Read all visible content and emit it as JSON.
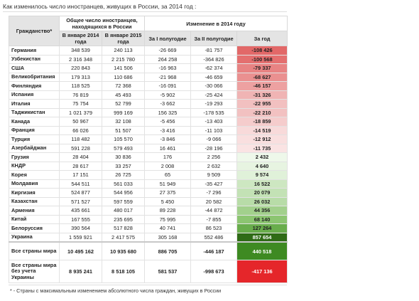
{
  "title": "Как изменилось число иностранцев, живущих в России, за 2014 год :",
  "table": {
    "header": {
      "country": "Гражданство*",
      "total_group": "Общее число иностранцев, находящихся в России",
      "change_group": "Изменение в 2014 году",
      "columns": [
        "В январе 2014 года",
        "В январе 2015 года",
        "За I полугодие",
        "За II полугодие",
        "За год"
      ]
    },
    "rows": [
      [
        "Германия",
        "348 539",
        "240 113",
        "-26 669",
        "-81 757",
        "-108 426"
      ],
      [
        "Узбекистан",
        "2 316 348",
        "2 215 780",
        "264 258",
        "-364 826",
        "-100 568"
      ],
      [
        "США",
        "220 843",
        "141 506",
        "-16 963",
        "-62 374",
        "-79 337"
      ],
      [
        "Великобритания",
        "179 313",
        "110 686",
        "-21 968",
        "-46 659",
        "-68 627"
      ],
      [
        "Финляндия",
        "118 525",
        "72 368",
        "-16 091",
        "-30 066",
        "-46 157"
      ],
      [
        "Испания",
        "76 819",
        "45 493",
        "-5 902",
        "-25 424",
        "-31 326"
      ],
      [
        "Италия",
        "75 754",
        "52 799",
        "-3 662",
        "-19 293",
        "-22 955"
      ],
      [
        "Таджикистан",
        "1 021 379",
        "999 169",
        "156 325",
        "-178 535",
        "-22 210"
      ],
      [
        "Канада",
        "50 967",
        "32 108",
        "-5 456",
        "-13 403",
        "-18 859"
      ],
      [
        "Франция",
        "66 026",
        "51 507",
        "-3 416",
        "-11 103",
        "-14 519"
      ],
      [
        "Турция",
        "118 482",
        "105 570",
        "-3 846",
        "-9 066",
        "-12 912"
      ],
      [
        "Азербайджан",
        "591 228",
        "579 493",
        "16 461",
        "-28 196",
        "-11 735"
      ],
      [
        "Грузия",
        "28 404",
        "30 836",
        "176",
        "2 256",
        "2 432"
      ],
      [
        "КНДР",
        "28 617",
        "33 257",
        "2 008",
        "2 632",
        "4 640"
      ],
      [
        "Корея",
        "17 151",
        "26 725",
        "65",
        "9 509",
        "9 574"
      ],
      [
        "Молдавия",
        "544 511",
        "561 033",
        "51 949",
        "-35 427",
        "16 522"
      ],
      [
        "Киргизия",
        "524 877",
        "544 956",
        "27 375",
        "-7 296",
        "20 079"
      ],
      [
        "Казахстан",
        "571 527",
        "597 559",
        "5 450",
        "20 582",
        "26 032"
      ],
      [
        "Армения",
        "435 661",
        "480 017",
        "89 228",
        "-44 872",
        "44 356"
      ],
      [
        "Китай",
        "167 555",
        "235 695",
        "75 995",
        "-7 855",
        "68 140"
      ],
      [
        "Белоруссия",
        "390 564",
        "517 828",
        "40 741",
        "86 523",
        "127 264"
      ],
      [
        "Украина",
        "1 559 921",
        "2 417 575",
        "305 168",
        "552 486",
        "857 654"
      ],
      [
        "Все страны мира",
        "10 495 162",
        "10 935 680",
        "886 705",
        "-446 187",
        "440 518"
      ],
      [
        "Все страны мира без учета Украины",
        "8 935 241",
        "8 518 105",
        "581 537",
        "-998 673",
        "-417 136"
      ]
    ],
    "year_colors": [
      "#e26868",
      "#e46f6f",
      "#e88383",
      "#ea9090",
      "#eda1a1",
      "#f0b4b4",
      "#f2c0c0",
      "#f2c1c1",
      "#f5cccc",
      "#f8dada",
      "#f9dfdf",
      "#fae3e3",
      "#eef8ea",
      "#e7f4e1",
      "#e0f1d9",
      "#cde7c1",
      "#c3e2b5",
      "#b8dca8",
      "#a2d08c",
      "#8cc571",
      "#69ad4c",
      "#2f6b16",
      "#3e8a22",
      "#e5262a"
    ]
  },
  "footnote": "* - Страны с максимальным изменением абсолютного числа граждан, живущих в России"
}
